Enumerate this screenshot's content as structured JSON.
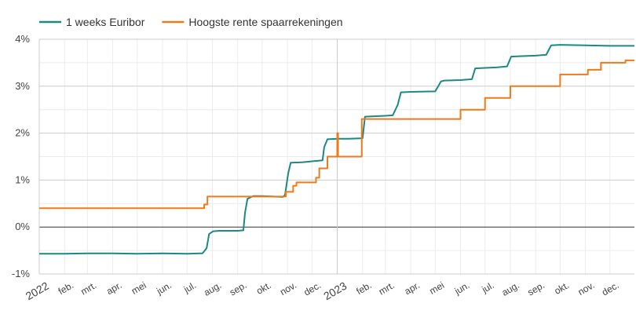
{
  "chart_data": {
    "type": "line",
    "title": "",
    "xlabel": "",
    "ylabel": "",
    "legend_position": "top-left",
    "ylim": [
      -1,
      4
    ],
    "y_ticks": [
      "-1%",
      "0%",
      "1%",
      "2%",
      "3%",
      "4%"
    ],
    "y_tick_values": [
      -1,
      0,
      1,
      2,
      3,
      4
    ],
    "x_range": [
      "2022-01-01",
      "2023-12-31"
    ],
    "x_ticks": [
      {
        "date": "2022-01-01",
        "label": "2022",
        "year": true
      },
      {
        "date": "2022-02-01",
        "label": "feb."
      },
      {
        "date": "2022-03-01",
        "label": "mrt."
      },
      {
        "date": "2022-04-01",
        "label": "apr."
      },
      {
        "date": "2022-05-01",
        "label": "mei"
      },
      {
        "date": "2022-06-01",
        "label": "jun."
      },
      {
        "date": "2022-07-01",
        "label": "jul."
      },
      {
        "date": "2022-08-01",
        "label": "aug."
      },
      {
        "date": "2022-09-01",
        "label": "sep."
      },
      {
        "date": "2022-10-01",
        "label": "okt."
      },
      {
        "date": "2022-11-01",
        "label": "nov."
      },
      {
        "date": "2022-12-01",
        "label": "dec."
      },
      {
        "date": "2023-01-01",
        "label": "2023",
        "year": true
      },
      {
        "date": "2023-02-01",
        "label": "feb."
      },
      {
        "date": "2023-03-01",
        "label": "mrt."
      },
      {
        "date": "2023-04-01",
        "label": "apr."
      },
      {
        "date": "2023-05-01",
        "label": "mei"
      },
      {
        "date": "2023-06-01",
        "label": "jun."
      },
      {
        "date": "2023-07-01",
        "label": "jul."
      },
      {
        "date": "2023-08-01",
        "label": "aug."
      },
      {
        "date": "2023-09-01",
        "label": "sep."
      },
      {
        "date": "2023-10-01",
        "label": "okt."
      },
      {
        "date": "2023-11-01",
        "label": "nov."
      },
      {
        "date": "2023-12-01",
        "label": "dec."
      }
    ],
    "grid": true,
    "series": [
      {
        "name": "1 weeks Euribor",
        "color": "#1a8a82",
        "points": [
          [
            "2022-01-01",
            -0.57
          ],
          [
            "2022-02-01",
            -0.57
          ],
          [
            "2022-03-01",
            -0.56
          ],
          [
            "2022-04-01",
            -0.56
          ],
          [
            "2022-05-01",
            -0.57
          ],
          [
            "2022-06-01",
            -0.56
          ],
          [
            "2022-07-01",
            -0.57
          ],
          [
            "2022-07-20",
            -0.56
          ],
          [
            "2022-07-25",
            -0.45
          ],
          [
            "2022-07-28",
            -0.15
          ],
          [
            "2022-08-02",
            -0.09
          ],
          [
            "2022-08-10",
            -0.08
          ],
          [
            "2022-09-01",
            -0.08
          ],
          [
            "2022-09-08",
            -0.07
          ],
          [
            "2022-09-10",
            0.3
          ],
          [
            "2022-09-13",
            0.6
          ],
          [
            "2022-09-20",
            0.66
          ],
          [
            "2022-10-01",
            0.66
          ],
          [
            "2022-10-15",
            0.65
          ],
          [
            "2022-10-26",
            0.64
          ],
          [
            "2022-10-29",
            0.68
          ],
          [
            "2022-11-02",
            1.15
          ],
          [
            "2022-11-05",
            1.37
          ],
          [
            "2022-11-20",
            1.38
          ],
          [
            "2022-12-01",
            1.4
          ],
          [
            "2022-12-14",
            1.42
          ],
          [
            "2022-12-16",
            1.7
          ],
          [
            "2022-12-20",
            1.87
          ],
          [
            "2023-01-01",
            1.88
          ],
          [
            "2023-01-15",
            1.88
          ],
          [
            "2023-02-01",
            1.89
          ],
          [
            "2023-02-04",
            2.35
          ],
          [
            "2023-02-15",
            2.36
          ],
          [
            "2023-03-01",
            2.37
          ],
          [
            "2023-03-10",
            2.38
          ],
          [
            "2023-03-16",
            2.6
          ],
          [
            "2023-03-20",
            2.87
          ],
          [
            "2023-04-01",
            2.88
          ],
          [
            "2023-05-01",
            2.89
          ],
          [
            "2023-05-08",
            3.1
          ],
          [
            "2023-05-12",
            3.12
          ],
          [
            "2023-06-01",
            3.13
          ],
          [
            "2023-06-15",
            3.15
          ],
          [
            "2023-06-19",
            3.38
          ],
          [
            "2023-07-01",
            3.39
          ],
          [
            "2023-07-15",
            3.4
          ],
          [
            "2023-07-28",
            3.42
          ],
          [
            "2023-08-02",
            3.63
          ],
          [
            "2023-08-15",
            3.64
          ],
          [
            "2023-09-01",
            3.65
          ],
          [
            "2023-09-14",
            3.67
          ],
          [
            "2023-09-20",
            3.87
          ],
          [
            "2023-10-01",
            3.88
          ],
          [
            "2023-11-01",
            3.87
          ],
          [
            "2023-12-01",
            3.86
          ],
          [
            "2023-12-31",
            3.86
          ]
        ]
      },
      {
        "name": "Hoogste rente spaarrekeningen",
        "color": "#f07a1a",
        "points": [
          [
            "2022-01-01",
            0.4
          ],
          [
            "2022-07-22",
            0.4
          ],
          [
            "2022-07-22",
            0.48
          ],
          [
            "2022-07-26",
            0.48
          ],
          [
            "2022-07-26",
            0.65
          ],
          [
            "2022-10-30",
            0.65
          ],
          [
            "2022-10-30",
            0.75
          ],
          [
            "2022-11-08",
            0.75
          ],
          [
            "2022-11-08",
            0.88
          ],
          [
            "2022-11-12",
            0.88
          ],
          [
            "2022-11-12",
            0.95
          ],
          [
            "2022-12-06",
            0.95
          ],
          [
            "2022-12-06",
            1.05
          ],
          [
            "2022-12-10",
            1.05
          ],
          [
            "2022-12-10",
            1.25
          ],
          [
            "2022-12-20",
            1.25
          ],
          [
            "2022-12-20",
            1.5
          ],
          [
            "2023-01-01",
            1.5
          ],
          [
            "2023-01-01",
            2.0
          ],
          [
            "2023-01-02",
            2.0
          ],
          [
            "2023-01-02",
            1.5
          ],
          [
            "2023-01-31",
            1.5
          ],
          [
            "2023-01-31",
            2.3
          ],
          [
            "2023-06-01",
            2.3
          ],
          [
            "2023-06-01",
            2.5
          ],
          [
            "2023-07-01",
            2.5
          ],
          [
            "2023-07-01",
            2.75
          ],
          [
            "2023-08-01",
            2.75
          ],
          [
            "2023-08-01",
            3.0
          ],
          [
            "2023-10-01",
            3.0
          ],
          [
            "2023-10-01",
            3.25
          ],
          [
            "2023-11-04",
            3.25
          ],
          [
            "2023-11-04",
            3.35
          ],
          [
            "2023-11-20",
            3.35
          ],
          [
            "2023-11-20",
            3.5
          ],
          [
            "2023-12-20",
            3.5
          ],
          [
            "2023-12-20",
            3.55
          ],
          [
            "2023-12-31",
            3.55
          ]
        ]
      }
    ]
  }
}
